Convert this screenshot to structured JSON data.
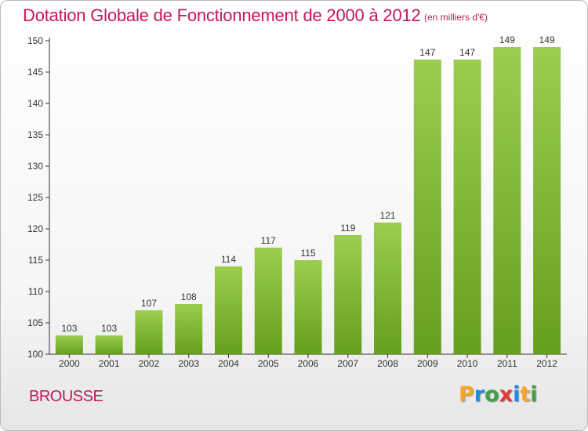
{
  "title": "Dotation Globale de Fonctionnement de 2000 à 2012",
  "subtitle": "(en milliers d'€)",
  "commune": "BROUSSE",
  "logo": {
    "text": "Proxiti",
    "letters": [
      {
        "ch": "P",
        "color": "#f5a623"
      },
      {
        "ch": "r",
        "color": "#1e88e5"
      },
      {
        "ch": "o",
        "color": "#43a047"
      },
      {
        "ch": "x",
        "color": "#e53935"
      },
      {
        "ch": "i",
        "color": "#1e88e5"
      },
      {
        "ch": "t",
        "color": "#f5a623"
      },
      {
        "ch": "i",
        "color": "#43a047"
      }
    ]
  },
  "chart_data": {
    "type": "bar",
    "title": "Dotation Globale de Fonctionnement de 2000 à 2012",
    "subtitle": "(en milliers d'€)",
    "categories": [
      "2000",
      "2001",
      "2002",
      "2003",
      "2004",
      "2005",
      "2006",
      "2007",
      "2008",
      "2009",
      "2010",
      "2011",
      "2012"
    ],
    "values": [
      103,
      103,
      107,
      108,
      114,
      117,
      115,
      119,
      121,
      147,
      147,
      149,
      149
    ],
    "ylim": [
      100,
      150
    ],
    "yticks": [
      100,
      105,
      110,
      115,
      120,
      125,
      130,
      135,
      140,
      145,
      150
    ],
    "grid": false,
    "colors": {
      "bar_top": "#9ccd4f",
      "bar_bottom": "#65a01c",
      "axis": "#333333"
    }
  }
}
